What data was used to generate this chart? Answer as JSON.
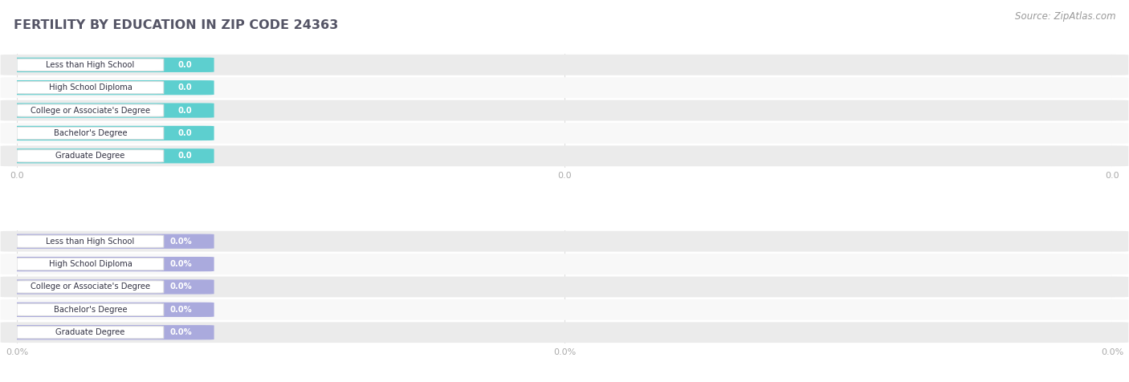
{
  "title": "FERTILITY BY EDUCATION IN ZIP CODE 24363",
  "source": "Source: ZipAtlas.com",
  "categories": [
    "Less than High School",
    "High School Diploma",
    "College or Associate's Degree",
    "Bachelor's Degree",
    "Graduate Degree"
  ],
  "values_top": [
    0.0,
    0.0,
    0.0,
    0.0,
    0.0
  ],
  "values_bottom": [
    0.0,
    0.0,
    0.0,
    0.0,
    0.0
  ],
  "bar_color_top": "#5DCFCF",
  "bar_color_bottom": "#AAAADD",
  "row_bg_colors": [
    "#EBEBEB",
    "#F8F8F8"
  ],
  "label_bg_color": "#FFFFFF",
  "label_border_color": "#DDDDDD",
  "title_color": "#555566",
  "source_color": "#999999",
  "tick_color": "#AAAAAA",
  "grid_color": "#DDDDDD",
  "top_tick_labels": [
    "0.0",
    "0.0",
    "0.0"
  ],
  "bottom_tick_labels": [
    "0.0%",
    "0.0%",
    "0.0%"
  ],
  "figsize": [
    14.06,
    4.76
  ],
  "dpi": 100
}
